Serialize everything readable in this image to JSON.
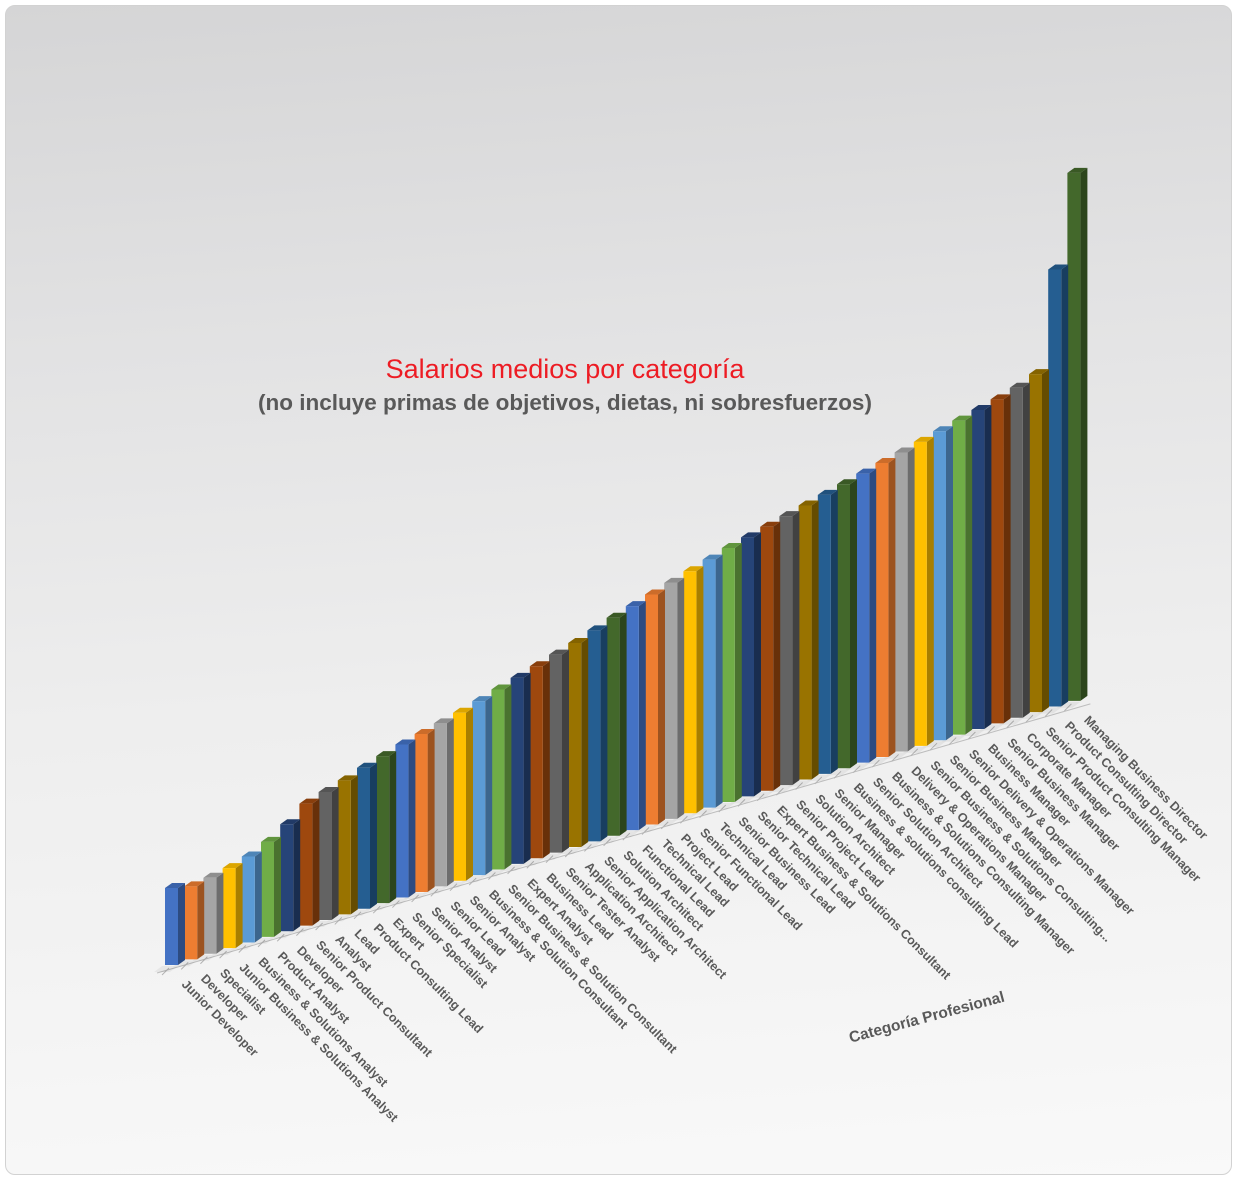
{
  "chart_data": {
    "type": "bar",
    "variant": "3d-column",
    "title": "Salarios medios por categoría",
    "subtitle": "(no incluye primas de objetivos, dietas, ni sobresfuerzos)",
    "xlabel": "Categoría Profesional",
    "ylabel": "",
    "value_axis_visible": false,
    "legend": "none",
    "sort": "ascending",
    "title_color": "#ED1C24",
    "subtitle_color": "#595959",
    "category_label_color": "#595959",
    "axis_line_color": "#bdbdbd",
    "palette": [
      "#4472C4",
      "#ED7D31",
      "#A5A5A5",
      "#FFC000",
      "#5B9BD5",
      "#70AD47",
      "#264478",
      "#9E480E",
      "#636363",
      "#997300",
      "#255E91",
      "#43682B"
    ],
    "categories": [
      "Junior Developer",
      "Developer",
      "Specialist",
      "Junior Business & Solutions Analyst",
      "Business & Solutions Analyst",
      "Product Analyst",
      "Developer",
      "Senior Product Consultant",
      "Analyst",
      "Lead",
      "Product Consulting Lead",
      "Expert",
      "Senior Specialist",
      "Senior Analyst",
      "Senior Lead",
      "Senior Analyst",
      "Business & Solution Consultant",
      "Senior Business & Solution Consultant",
      "Expert Analyst",
      "Business Lead",
      "Senior Tester Analyst",
      "Application Architect",
      "Senior Application Architect",
      "Solution Architect",
      "Functional Lead",
      "Technical Lead",
      "Project Lead",
      "Senior Functional Lead",
      "Technical Lead",
      "Senior Business Lead",
      "Senior Technical Lead",
      "Expert Business & Solutions Consultant",
      "Senior Project Lead",
      "Solution Architect",
      "Senior Manager",
      "Business & solutions consulting Lead",
      "Senior Solution Architect",
      "Business & Solutions Consulting Manager",
      "Delivery & Operations Manager",
      "Senior Business & Solutions Consulting...",
      "Senior Business Manager",
      "Senior Delivery & Operations Manager",
      "Business Manager",
      "Senior Business Manager",
      "Corporate Manager",
      "Senior Product Consulting Manager",
      "Product Consulting Director",
      "Managing Business Director"
    ],
    "values": [
      77,
      73,
      76,
      80,
      86,
      95,
      107,
      122,
      128,
      134,
      141,
      147,
      153,
      158,
      163,
      168,
      174,
      180,
      186,
      192,
      198,
      204,
      211,
      218,
      224,
      230,
      236,
      242,
      248,
      254,
      259,
      264,
      269,
      274,
      279,
      284,
      289,
      294,
      299,
      304,
      309,
      314,
      319,
      324,
      330,
      338,
      437,
      528
    ]
  },
  "frame": {
    "background_top": "#d5d5d6",
    "background_bottom": "#f9f9f9",
    "border_color": "#d2d2d2"
  }
}
